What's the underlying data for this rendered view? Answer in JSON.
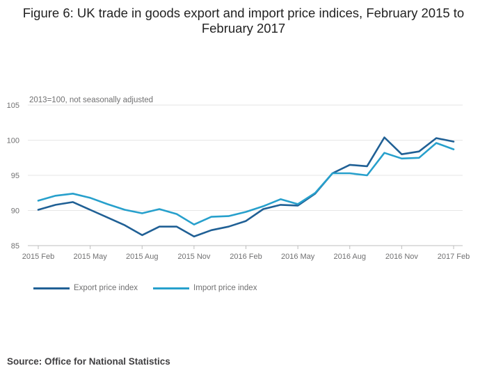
{
  "title": "Figure 6: UK trade in goods export and import price indices, February 2015 to February 2017",
  "source": "Source: Office for National Statistics",
  "chart_data": {
    "type": "line",
    "title": "Figure 6: UK trade in goods export and import price indices, February 2015 to February 2017",
    "unit_note": "2013=100, not seasonally adjusted",
    "xlabel": "",
    "ylabel": "",
    "ylim": [
      85,
      105
    ],
    "yticks": [
      85,
      90,
      95,
      100,
      105
    ],
    "grid": true,
    "legend_position": "bottom-left",
    "x": [
      "2015 Feb",
      "2015 Mar",
      "2015 Apr",
      "2015 May",
      "2015 Jun",
      "2015 Jul",
      "2015 Aug",
      "2015 Sep",
      "2015 Oct",
      "2015 Nov",
      "2015 Dec",
      "2016 Jan",
      "2016 Feb",
      "2016 Mar",
      "2016 Apr",
      "2016 May",
      "2016 Jun",
      "2016 Jul",
      "2016 Aug",
      "2016 Sep",
      "2016 Oct",
      "2016 Nov",
      "2016 Dec",
      "2017 Jan",
      "2017 Feb"
    ],
    "x_tick_labels": [
      "2015 Feb",
      "2015 May",
      "2015 Aug",
      "2015 Nov",
      "2016 Feb",
      "2016 May",
      "2016 Aug",
      "2016 Nov",
      "2017 Feb"
    ],
    "x_tick_step": 3,
    "series": [
      {
        "name": "Export price index",
        "color": "#206095",
        "values": [
          90.1,
          90.8,
          91.2,
          90.1,
          89.0,
          87.9,
          86.5,
          87.7,
          87.7,
          86.3,
          87.2,
          87.7,
          88.5,
          90.2,
          90.8,
          90.7,
          92.4,
          95.3,
          96.5,
          96.3,
          100.4,
          98.0,
          98.4,
          100.3,
          99.8
        ]
      },
      {
        "name": "Import price index",
        "color": "#27A0CC",
        "values": [
          91.4,
          92.1,
          92.4,
          91.8,
          90.9,
          90.1,
          89.6,
          90.2,
          89.5,
          88.0,
          89.1,
          89.2,
          89.8,
          90.6,
          91.6,
          90.9,
          92.5,
          95.3,
          95.3,
          95.0,
          98.2,
          97.4,
          97.5,
          99.6,
          98.7
        ]
      }
    ]
  }
}
